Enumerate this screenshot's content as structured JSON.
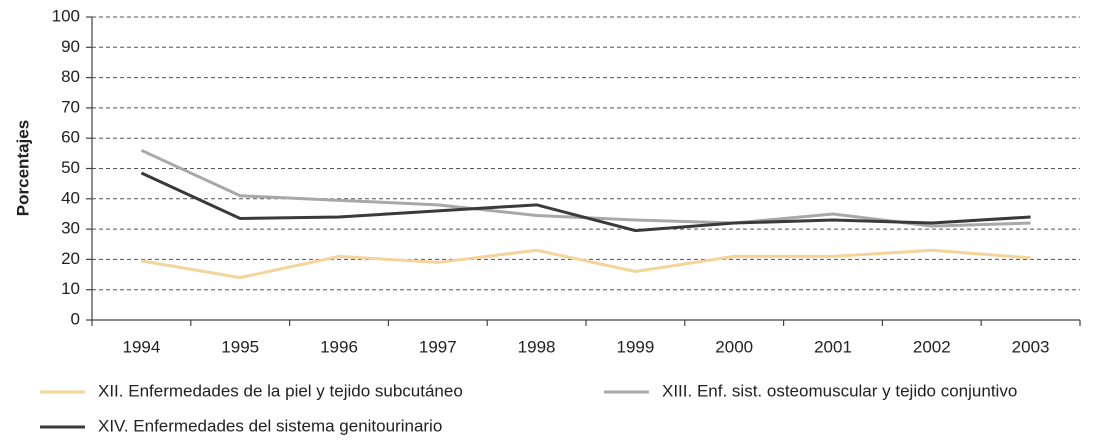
{
  "chart_data": {
    "type": "line",
    "y_label": "Porcentajes",
    "categories": [
      "1994",
      "1995",
      "1996",
      "1997",
      "1998",
      "1999",
      "2000",
      "2001",
      "2002",
      "2003"
    ],
    "series": [
      {
        "name": "XII. Enfermedades de la piel y tejido subcutáneo",
        "color": "#f5d49a",
        "values": [
          19.5,
          14,
          21,
          19,
          23,
          16,
          21,
          21,
          23,
          20.5
        ]
      },
      {
        "name": "XIII. Enf. sist. osteomuscular y tejido conjuntivo",
        "color": "#a8a8a8",
        "values": [
          56,
          41,
          39.5,
          38,
          34.5,
          33,
          32,
          35,
          31,
          32
        ]
      },
      {
        "name": "XIV. Enfermedades del sistema genitourinario",
        "color": "#3a3a3a",
        "values": [
          48.5,
          33.5,
          34,
          36,
          38,
          29.5,
          32,
          33,
          32,
          34
        ]
      }
    ],
    "ylim": [
      0,
      100
    ],
    "yticks": [
      0,
      10,
      20,
      30,
      40,
      50,
      60,
      70,
      80,
      90,
      100
    ],
    "grid": true
  }
}
